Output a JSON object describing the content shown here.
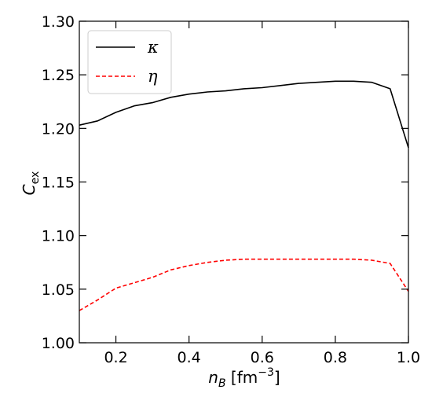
{
  "chart_data": {
    "type": "line",
    "xlabel": "n_B [fm^-3]",
    "ylabel": "C_ex",
    "xlim": [
      0.1,
      1.0
    ],
    "ylim": [
      1.0,
      1.3
    ],
    "xticks": [
      0.2,
      0.4,
      0.6,
      0.8,
      1.0
    ],
    "xtick_labels": [
      "0.2",
      "0.4",
      "0.6",
      "0.8",
      "1.0"
    ],
    "yticks": [
      1.0,
      1.05,
      1.1,
      1.15,
      1.2,
      1.25,
      1.3
    ],
    "ytick_labels": [
      "1.00",
      "1.05",
      "1.10",
      "1.15",
      "1.20",
      "1.25",
      "1.30"
    ],
    "legend_position": "top-left",
    "grid": false,
    "series": [
      {
        "name": "κ",
        "color": "#000000",
        "style": "solid",
        "x": [
          0.1,
          0.15,
          0.2,
          0.25,
          0.3,
          0.35,
          0.4,
          0.45,
          0.5,
          0.55,
          0.6,
          0.65,
          0.7,
          0.75,
          0.8,
          0.85,
          0.9,
          0.95,
          1.0
        ],
        "y": [
          1.203,
          1.207,
          1.215,
          1.221,
          1.224,
          1.229,
          1.232,
          1.234,
          1.235,
          1.237,
          1.238,
          1.24,
          1.242,
          1.243,
          1.244,
          1.244,
          1.243,
          1.237,
          1.182
        ]
      },
      {
        "name": "η",
        "color": "#ff0000",
        "style": "dashed",
        "x": [
          0.1,
          0.15,
          0.2,
          0.25,
          0.3,
          0.35,
          0.4,
          0.45,
          0.5,
          0.55,
          0.6,
          0.65,
          0.7,
          0.75,
          0.8,
          0.85,
          0.9,
          0.95,
          1.0
        ],
        "y": [
          1.03,
          1.04,
          1.051,
          1.056,
          1.061,
          1.068,
          1.072,
          1.075,
          1.077,
          1.078,
          1.078,
          1.078,
          1.078,
          1.078,
          1.078,
          1.078,
          1.077,
          1.074,
          1.048
        ]
      }
    ]
  }
}
